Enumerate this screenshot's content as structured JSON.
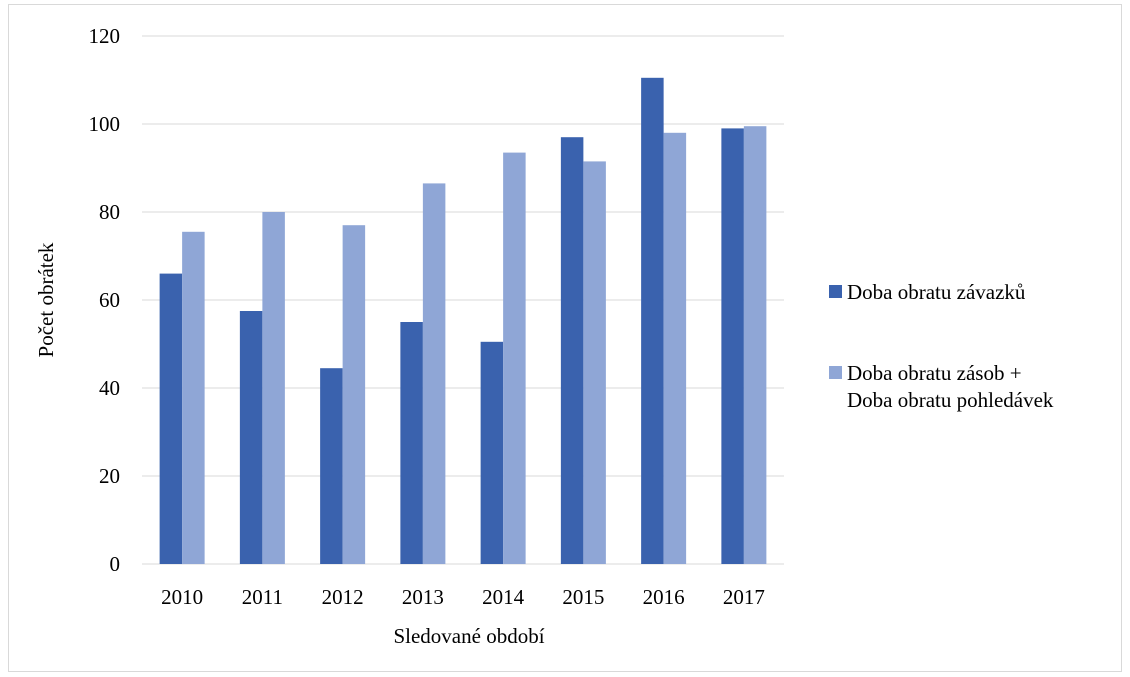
{
  "chart_data": {
    "type": "bar",
    "categories": [
      "2010",
      "2011",
      "2012",
      "2013",
      "2014",
      "2015",
      "2016",
      "2017"
    ],
    "series": [
      {
        "name": "Doba obratu závazků",
        "color": "#3a62ae",
        "values": [
          66,
          57.5,
          44.5,
          55,
          50.5,
          97,
          110.5,
          99
        ]
      },
      {
        "name_lines": [
          "Doba obratu zásob +",
          "Doba obratu pohledávek"
        ],
        "color": "#8fa6d6",
        "values": [
          75.5,
          80,
          77,
          86.5,
          93.5,
          91.5,
          98,
          99.5
        ]
      }
    ],
    "xlabel": "Sledované období",
    "ylabel": "Počet obrátek",
    "ylim": [
      0,
      120
    ],
    "yticks": [
      "0",
      "20",
      "40",
      "60",
      "80",
      "100",
      "120"
    ],
    "grid": true,
    "legend_position": "right"
  }
}
